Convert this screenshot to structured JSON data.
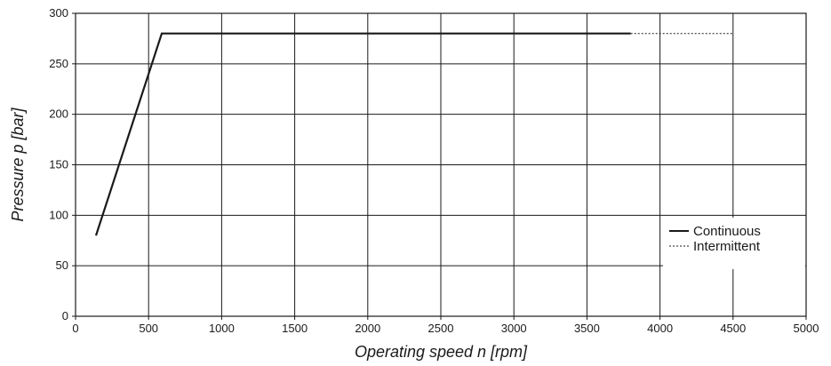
{
  "chart_data": {
    "type": "line",
    "title": "",
    "xlabel": "Operating speed n [rpm]",
    "ylabel": "Pressure p [bar]",
    "xlim": [
      0,
      5000
    ],
    "ylim": [
      0,
      300
    ],
    "x_ticks": [
      "0",
      "500",
      "1000",
      "1500",
      "2000",
      "2500",
      "3000",
      "3500",
      "4000",
      "4500",
      "5000"
    ],
    "y_ticks": [
      "0",
      "50",
      "100",
      "150",
      "200",
      "250",
      "300"
    ],
    "grid": true,
    "legend_position": "right",
    "series": [
      {
        "name": "Continuous",
        "style": "solid",
        "color": "#1a1a1a",
        "points": [
          [
            140,
            80
          ],
          [
            590,
            280
          ],
          [
            3800,
            280
          ]
        ]
      },
      {
        "name": "Intermittent",
        "style": "dotted",
        "color": "#1a1a1a",
        "points": [
          [
            3800,
            280
          ],
          [
            4500,
            280
          ]
        ]
      }
    ]
  }
}
